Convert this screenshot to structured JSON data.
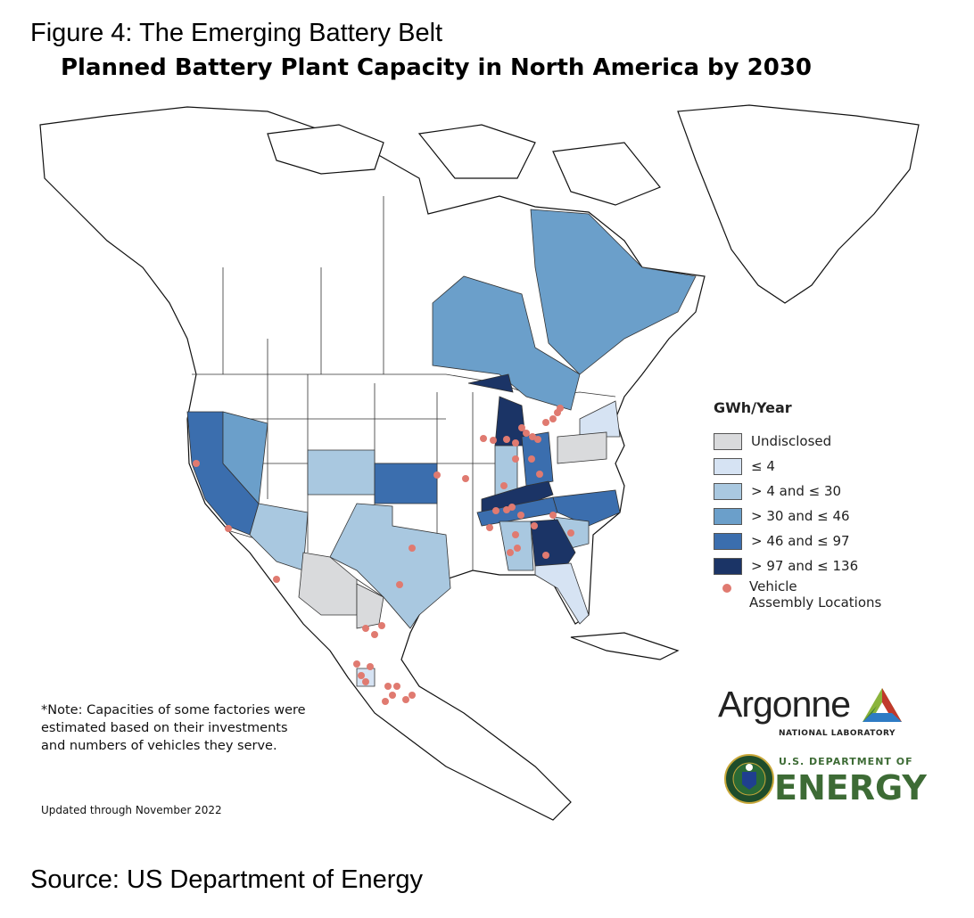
{
  "figure_label": "Figure 4: The Emerging Battery Belt",
  "title": "Planned Battery Plant Capacity in North America by 2030",
  "legend": {
    "title": "GWh/Year",
    "items": [
      {
        "label": "Undisclosed",
        "color": "#d9dadc"
      },
      {
        "label": "≤ 4",
        "color": "#d6e3f3"
      },
      {
        "label": "> 4 and ≤ 30",
        "color": "#a9c8e0"
      },
      {
        "label": "> 30 and ≤ 46",
        "color": "#6b9fca"
      },
      {
        "label": "> 46 and ≤ 97",
        "color": "#3b6eae"
      },
      {
        "label": "> 97 and ≤ 136",
        "color": "#1b3466"
      }
    ],
    "vehicle_label_1": "Vehicle",
    "vehicle_label_2": "Assembly Locations",
    "vehicle_color": "#e07a70"
  },
  "regions": [
    {
      "id": "ontario",
      "category": 3
    },
    {
      "id": "quebec",
      "category": 3
    },
    {
      "id": "california",
      "category": 4
    },
    {
      "id": "nevada",
      "category": 3
    },
    {
      "id": "arizona",
      "category": 2
    },
    {
      "id": "colorado",
      "category": 2
    },
    {
      "id": "kansas",
      "category": 4
    },
    {
      "id": "texas",
      "category": 2
    },
    {
      "id": "michigan",
      "category": 5
    },
    {
      "id": "indiana",
      "category": 2
    },
    {
      "id": "ohio",
      "category": 4
    },
    {
      "id": "kentucky",
      "category": 5
    },
    {
      "id": "tennessee",
      "category": 4
    },
    {
      "id": "north-carolina",
      "category": 4
    },
    {
      "id": "south-carolina",
      "category": 2
    },
    {
      "id": "georgia",
      "category": 5
    },
    {
      "id": "alabama",
      "category": 2
    },
    {
      "id": "florida",
      "category": 1
    },
    {
      "id": "new-york",
      "category": 1
    },
    {
      "id": "pennsylvania",
      "category": 0
    },
    {
      "id": "chihuahua",
      "category": 0
    },
    {
      "id": "coahuila",
      "category": 0
    },
    {
      "id": "guanajuato",
      "category": 1
    }
  ],
  "note": "*Note: Capacities of some factories were estimated based on their investments and numbers of vehicles they serve.",
  "updated": "Updated through November 2022",
  "source": "Source: US Department of Energy",
  "logos": {
    "argonne": "Argonne",
    "argonne_sub": "NATIONAL LABORATORY",
    "doe_top": "U.S. DEPARTMENT OF",
    "doe_main": "ENERGY"
  }
}
